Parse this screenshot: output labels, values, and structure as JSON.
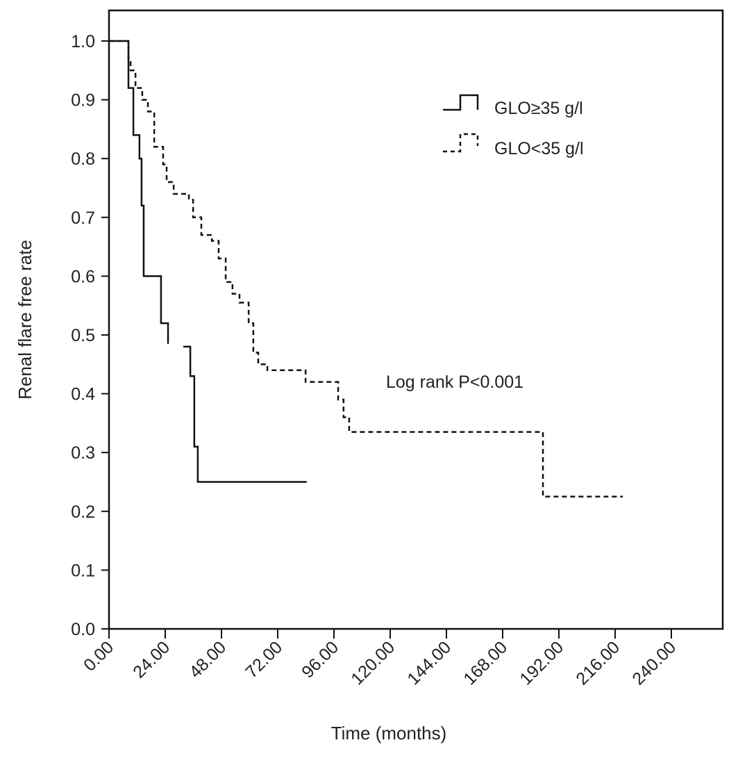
{
  "chart_data": {
    "type": "line",
    "subtype": "kaplan-meier step",
    "title": "",
    "xlabel": "Time (months)",
    "ylabel": "Renal flare free rate",
    "xlim": [
      0,
      262
    ],
    "ylim": [
      0,
      1.0
    ],
    "x_ticks": [
      "0.00",
      "24.00",
      "48.00",
      "72.00",
      "96.00",
      "120.00",
      "144.00",
      "168.00",
      "192.00",
      "216.00",
      "240.00"
    ],
    "x_tick_values": [
      0,
      24,
      48,
      72,
      96,
      120,
      144,
      168,
      192,
      216,
      240
    ],
    "y_ticks": [
      "0.0",
      "0.1",
      "0.2",
      "0.3",
      "0.4",
      "0.5",
      "0.6",
      "0.7",
      "0.8",
      "0.9",
      "1.0"
    ],
    "y_tick_values": [
      0,
      0.1,
      0.2,
      0.3,
      0.4,
      0.5,
      0.6,
      0.7,
      0.8,
      0.9,
      1.0
    ],
    "grid": false,
    "legend_position": "top-right",
    "annotation": "Log rank P<0.001",
    "series": [
      {
        "name": "GLO≥35 g/l",
        "style": "solid",
        "color": "#111111",
        "segments": [
          {
            "x": [
              0,
              8.3,
              10.4,
              13.0,
              13.9,
              14.8,
              22.2,
              25.2
            ],
            "y": [
              1.0,
              0.92,
              0.84,
              0.8,
              0.72,
              0.6,
              0.52,
              0.485
            ]
          },
          {
            "x": [
              31.7,
              34.7,
              36.4,
              37.9,
              84.4
            ],
            "y": [
              0.48,
              0.43,
              0.31,
              0.25,
              0.25
            ]
          }
        ]
      },
      {
        "name": "GLO<35 g/l",
        "style": "dashed",
        "color": "#111111",
        "segments": [
          {
            "x": [
              0,
              8.3,
              9.2,
              11.3,
              14.2,
              16.6,
              19.3,
              23.1,
              24.6,
              27.6,
              34.1,
              35.9,
              39.4,
              43.9,
              46.8,
              49.8,
              52.7,
              55.7,
              59.6,
              61.6,
              63.7,
              67.6,
              83.9,
              97.8,
              100.1,
              102.5,
              185.2,
              219.3
            ],
            "y": [
              1.0,
              0.97,
              0.95,
              0.92,
              0.9,
              0.88,
              0.82,
              0.79,
              0.76,
              0.74,
              0.73,
              0.7,
              0.67,
              0.66,
              0.63,
              0.59,
              0.57,
              0.555,
              0.52,
              0.47,
              0.45,
              0.44,
              0.42,
              0.39,
              0.36,
              0.335,
              0.225,
              0.225
            ]
          }
        ]
      }
    ]
  }
}
